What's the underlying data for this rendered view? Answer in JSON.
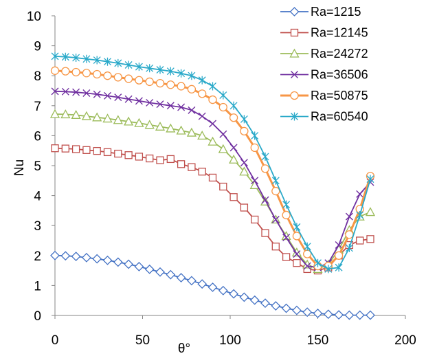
{
  "chart_data": {
    "type": "line",
    "xlabel": "θ°",
    "ylabel": "Nu",
    "xlim": [
      0,
      200
    ],
    "ylim": [
      0,
      10
    ],
    "xticks": [
      0,
      50,
      100,
      150,
      200
    ],
    "yticks": [
      0,
      1,
      2,
      3,
      4,
      5,
      6,
      7,
      8,
      9,
      10
    ],
    "grid": false,
    "legend_position": "top-right",
    "series": [
      {
        "name": "Ra=1215",
        "color": "#4472c4",
        "marker": "diamond",
        "x": [
          0,
          6,
          12,
          18,
          24,
          30,
          36,
          42,
          48,
          54,
          60,
          66,
          72,
          78,
          84,
          90,
          96,
          102,
          108,
          114,
          120,
          126,
          132,
          138,
          144,
          150,
          156,
          162,
          168,
          174,
          180
        ],
        "y": [
          2.0,
          1.99,
          1.97,
          1.93,
          1.89,
          1.84,
          1.78,
          1.71,
          1.63,
          1.54,
          1.45,
          1.36,
          1.26,
          1.16,
          1.05,
          0.94,
          0.83,
          0.72,
          0.61,
          0.51,
          0.41,
          0.32,
          0.24,
          0.17,
          0.11,
          0.07,
          0.04,
          0.02,
          0.01,
          0.01,
          0.01
        ]
      },
      {
        "name": "Ra=12145",
        "color": "#c0504d",
        "marker": "square",
        "x": [
          0,
          6,
          12,
          18,
          24,
          30,
          36,
          42,
          48,
          54,
          60,
          66,
          72,
          78,
          84,
          90,
          96,
          102,
          108,
          114,
          120,
          126,
          132,
          138,
          144,
          150,
          156,
          162,
          168,
          174,
          180
        ],
        "y": [
          5.58,
          5.57,
          5.55,
          5.52,
          5.49,
          5.45,
          5.4,
          5.35,
          5.3,
          5.24,
          5.18,
          5.22,
          5.05,
          4.95,
          4.8,
          4.6,
          4.3,
          3.95,
          3.6,
          3.2,
          2.75,
          2.3,
          1.95,
          1.75,
          1.55,
          1.5,
          1.6,
          2.0,
          2.35,
          2.5,
          2.55
        ]
      },
      {
        "name": "Ra=24272",
        "color": "#9bbb59",
        "marker": "triangle",
        "x": [
          0,
          6,
          12,
          18,
          24,
          30,
          36,
          42,
          48,
          54,
          60,
          66,
          72,
          78,
          84,
          90,
          96,
          102,
          108,
          114,
          120,
          126,
          132,
          138,
          144,
          150,
          156,
          162,
          168,
          174,
          180
        ],
        "y": [
          6.72,
          6.71,
          6.69,
          6.65,
          6.61,
          6.57,
          6.52,
          6.47,
          6.42,
          6.36,
          6.3,
          6.24,
          6.17,
          6.1,
          6.0,
          5.8,
          5.55,
          5.2,
          4.8,
          4.35,
          3.8,
          3.2,
          2.65,
          2.1,
          1.7,
          1.55,
          1.7,
          2.2,
          2.85,
          3.3,
          3.45
        ]
      },
      {
        "name": "Ra=36506",
        "color": "#7030a0",
        "marker": "x",
        "x": [
          0,
          6,
          12,
          18,
          24,
          30,
          36,
          42,
          48,
          54,
          60,
          66,
          72,
          78,
          84,
          90,
          96,
          102,
          108,
          114,
          120,
          126,
          132,
          138,
          144,
          150,
          156,
          162,
          168,
          174,
          180
        ],
        "y": [
          7.48,
          7.47,
          7.45,
          7.42,
          7.38,
          7.33,
          7.28,
          7.22,
          7.16,
          7.1,
          7.05,
          7.0,
          6.95,
          6.85,
          6.65,
          6.4,
          6.05,
          5.6,
          5.1,
          4.5,
          3.85,
          3.2,
          2.6,
          2.05,
          1.65,
          1.6,
          1.75,
          2.35,
          3.3,
          4.05,
          4.45
        ]
      },
      {
        "name": "Ra=50875",
        "color": "#f79646",
        "marker": "circle",
        "x": [
          0,
          6,
          12,
          18,
          24,
          30,
          36,
          42,
          48,
          54,
          60,
          66,
          72,
          78,
          84,
          90,
          96,
          102,
          108,
          114,
          120,
          126,
          132,
          138,
          144,
          150,
          156,
          162,
          168,
          174,
          180
        ],
        "y": [
          8.17,
          8.15,
          8.12,
          8.09,
          8.05,
          8.0,
          7.95,
          7.9,
          7.85,
          7.8,
          7.75,
          7.7,
          7.65,
          7.55,
          7.4,
          7.2,
          6.95,
          6.6,
          6.15,
          5.6,
          4.9,
          4.15,
          3.35,
          2.65,
          2.05,
          1.65,
          1.65,
          2.0,
          2.7,
          3.55,
          4.65
        ]
      },
      {
        "name": "Ra=60540",
        "color": "#2aa9c9",
        "marker": "star",
        "x": [
          0,
          6,
          12,
          18,
          24,
          30,
          36,
          42,
          48,
          54,
          60,
          66,
          72,
          78,
          84,
          90,
          96,
          102,
          108,
          114,
          120,
          126,
          132,
          138,
          144,
          150,
          156,
          162,
          168,
          174,
          180
        ],
        "y": [
          8.65,
          8.63,
          8.6,
          8.56,
          8.52,
          8.47,
          8.42,
          8.36,
          8.3,
          8.25,
          8.2,
          8.15,
          8.08,
          8.0,
          7.85,
          7.65,
          7.35,
          7.0,
          6.55,
          6.0,
          5.3,
          4.5,
          3.7,
          2.95,
          2.3,
          1.75,
          1.55,
          1.6,
          2.25,
          3.35,
          4.55
        ]
      }
    ]
  }
}
